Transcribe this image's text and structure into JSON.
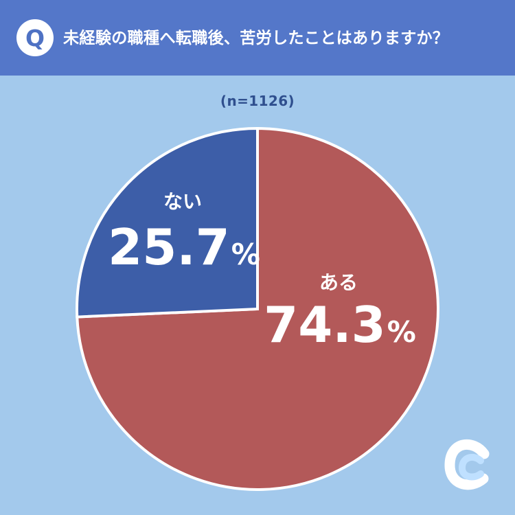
{
  "header": {
    "badge": "Q",
    "title": "未経験の職種へ転職後、苦労したことはありますか？"
  },
  "chart_data": {
    "type": "pie",
    "sample_size_label": "(n=1126)",
    "slices": [
      {
        "name": "ある",
        "value": 74.3,
        "label": "74.3",
        "color": "#b35959"
      },
      {
        "name": "ない",
        "value": 25.7,
        "label": "25.7",
        "color": "#3d5ea8"
      }
    ]
  },
  "brand": {
    "logo": "C"
  }
}
